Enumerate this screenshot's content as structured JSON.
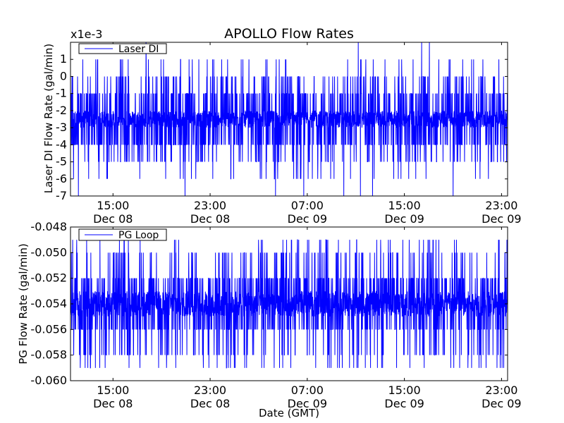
{
  "figure": {
    "title": "APOLLO Flow Rates",
    "xlabel": "Date (GMT)",
    "x_ticks": [
      {
        "t": "2013-12-08T15:00",
        "line1": "15:00",
        "line2": "Dec 08"
      },
      {
        "t": "2013-12-08T23:00",
        "line1": "23:00",
        "line2": "Dec 08"
      },
      {
        "t": "2013-12-09T07:00",
        "line1": "07:00",
        "line2": "Dec 09"
      },
      {
        "t": "2013-12-09T15:00",
        "line1": "15:00",
        "line2": "Dec 09"
      },
      {
        "t": "2013-12-09T23:00",
        "line1": "23:00",
        "line2": "Dec 09"
      }
    ]
  },
  "chart_data": [
    {
      "type": "line",
      "ylabel": "Laser DI Flow Rate (gal/min)",
      "offset_label": "x1e-3",
      "xlim": [
        "2013-12-08T11:30",
        "2013-12-09T23:30"
      ],
      "ylim": [
        -7,
        2
      ],
      "y_ticks": [
        "-7",
        "-6",
        "-5",
        "-4",
        "-3",
        "-2",
        "-1",
        "0",
        "1"
      ],
      "y_tick_values": [
        -7,
        -6,
        -5,
        -4,
        -3,
        -2,
        -1,
        0,
        1
      ],
      "grid": false,
      "legend_position": "top-left",
      "series": [
        {
          "name": "Laser DI",
          "color": "#0000ff",
          "center": -2.5,
          "band": [
            -3,
            -2
          ],
          "common": [
            -4,
            -1
          ],
          "occasional": [
            -5,
            0
          ],
          "rare": [
            -6,
            1
          ],
          "extremes": [
            -7,
            2
          ]
        }
      ]
    },
    {
      "type": "line",
      "ylabel": "PG Flow Rate (gal/min)",
      "xlim": [
        "2013-12-08T11:30",
        "2013-12-09T23:30"
      ],
      "ylim": [
        -0.06,
        -0.048
      ],
      "y_ticks": [
        "-0.060",
        "-0.058",
        "-0.056",
        "-0.054",
        "-0.052",
        "-0.050",
        "-0.048"
      ],
      "y_tick_values": [
        -0.06,
        -0.058,
        -0.056,
        -0.054,
        -0.052,
        -0.05,
        -0.048
      ],
      "grid": false,
      "legend_position": "top-left",
      "series": [
        {
          "name": "PG Loop",
          "color": "#0000ff",
          "center": -0.054,
          "band": [
            -0.055,
            -0.053
          ],
          "common": [
            -0.056,
            -0.052
          ],
          "occasional": [
            -0.058,
            -0.05
          ],
          "rare": [
            -0.059,
            -0.049
          ],
          "extremes": [
            -0.059,
            -0.049
          ]
        }
      ]
    }
  ]
}
